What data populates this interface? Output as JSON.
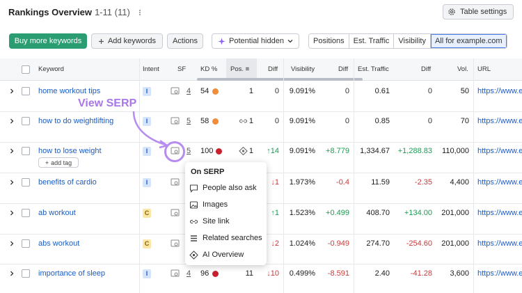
{
  "header": {
    "title": "Rankings Overview",
    "range": "1-11 (11)",
    "settings_label": "Table settings"
  },
  "toolbar": {
    "buy_label": "Buy more keywords",
    "add_label": "Add keywords",
    "actions_label": "Actions",
    "potential_label": "Potential hidden",
    "segments": [
      "Positions",
      "Est. Traffic",
      "Visibility",
      "All for example.com"
    ],
    "active_segment": "All for example.com"
  },
  "table": {
    "columns": {
      "keyword": "Keyword",
      "intent": "Intent",
      "sf": "SF",
      "kd": "KD %",
      "pos": "Pos.",
      "diff": "Diff",
      "visibility": "Visibility",
      "diff2": "Diff",
      "traffic": "Est. Traffic",
      "diff3": "Diff",
      "vol": "Vol.",
      "url": "URL"
    },
    "rows": [
      {
        "keyword": "home workout tips",
        "intent": "I",
        "sf": "4",
        "kd": "54",
        "kd_color": "#f08c3a",
        "pos": "1",
        "pos_icon": "",
        "diff": "0",
        "visibility": "9.091%",
        "vis_diff": "0",
        "traffic": "0.61",
        "traffic_diff": "0",
        "vol": "50",
        "url": "https://www.exa"
      },
      {
        "keyword": "how to do weightlifting",
        "intent": "I",
        "sf": "5",
        "kd": "58",
        "kd_color": "#f08c3a",
        "pos": "1",
        "pos_icon": "link-icon",
        "diff": "0",
        "visibility": "9.091%",
        "vis_diff": "0",
        "traffic": "0.85",
        "traffic_diff": "0",
        "vol": "70",
        "url": "https://www.exa"
      },
      {
        "keyword": "how to lose weight",
        "intent": "I",
        "sf": "5",
        "kd": "100",
        "kd_color": "#c8202e",
        "pos": "1",
        "pos_icon": "ai-overview-icon",
        "diff": "↑14",
        "visibility": "9.091%",
        "vis_diff": "+8.779",
        "traffic": "1,334.67",
        "traffic_diff": "+1,288.83",
        "vol": "110,000",
        "url": "https://www.exa"
      },
      {
        "keyword": "benefits of cardio",
        "intent": "I",
        "sf": "",
        "kd": "",
        "kd_color": "",
        "pos": "",
        "pos_icon": "",
        "diff": "↓1",
        "visibility": "1.973%",
        "vis_diff": "-0.4",
        "traffic": "11.59",
        "traffic_diff": "-2.35",
        "vol": "4,400",
        "url": "https://www.exa"
      },
      {
        "keyword": "ab workout",
        "intent": "C",
        "sf": "",
        "kd": "",
        "kd_color": "",
        "pos": "",
        "pos_icon": "",
        "diff": "↑1",
        "visibility": "1.523%",
        "vis_diff": "+0.499",
        "traffic": "408.70",
        "traffic_diff": "+134.00",
        "vol": "201,000",
        "url": "https://www.exa"
      },
      {
        "keyword": "abs workout",
        "intent": "C",
        "sf": "",
        "kd": "",
        "kd_color": "",
        "pos": "",
        "pos_icon": "",
        "diff": "↓2",
        "visibility": "1.024%",
        "vis_diff": "-0.949",
        "traffic": "274.70",
        "traffic_diff": "-254.60",
        "vol": "201,000",
        "url": "https://www.exa"
      },
      {
        "keyword": "importance of sleep",
        "intent": "I",
        "sf": "4",
        "kd": "96",
        "kd_color": "#c8202e",
        "pos": "11",
        "pos_icon": "",
        "diff": "↓10",
        "visibility": "0.499%",
        "vis_diff": "-8.591",
        "traffic": "2.40",
        "traffic_diff": "-41.28",
        "vol": "3,600",
        "url": "https://www.exa"
      }
    ]
  },
  "tag_label": "add tag",
  "popup": {
    "title": "On SERP",
    "items": [
      "People also ask",
      "Images",
      "Site link",
      "Related searches",
      "AI Overview"
    ]
  },
  "annotation": "View SERP",
  "colors": {
    "accent": "#2a9d72",
    "link": "#1a5cc7",
    "positive": "#1f9a55",
    "negative": "#c83b3b",
    "annotation": "#a877e8"
  }
}
